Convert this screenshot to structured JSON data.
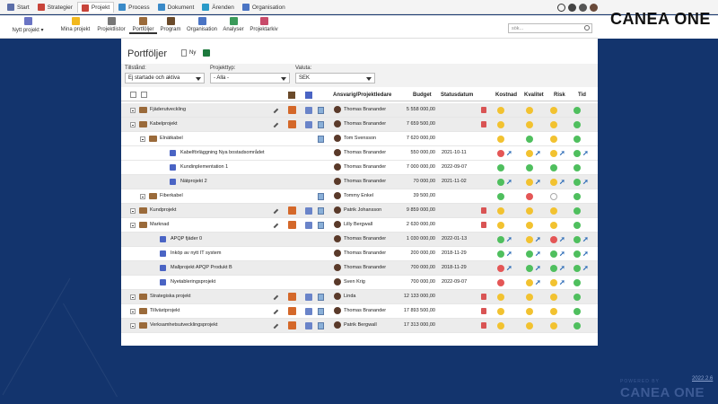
{
  "topnav": {
    "tabs": [
      {
        "label": "Start",
        "color": "#5b6ea8"
      },
      {
        "label": "Strategier",
        "color": "#c8443a"
      },
      {
        "label": "Projekt",
        "color": "#c8443a"
      },
      {
        "label": "Process",
        "color": "#3a8ac8"
      },
      {
        "label": "Dokument",
        "color": "#3a8ac8"
      },
      {
        "label": "Ärenden",
        "color": "#2a9ac8"
      },
      {
        "label": "Organisation",
        "color": "#4a74c4"
      }
    ]
  },
  "brand": {
    "name_part1": "CANEA ",
    "name_part2": "ONE"
  },
  "subnav": {
    "items": [
      "Nytt projekt",
      "Mina projekt",
      "Projektlistor",
      "Portföljer",
      "Program",
      "Organisation",
      "Analyser",
      "Projektarkiv"
    ],
    "search_placeholder": "sök..."
  },
  "page": {
    "title": "Portföljer",
    "new_label": "Ny"
  },
  "filters": {
    "state_label": "Tillstånd:",
    "state_value": "Ej startade och aktiva",
    "type_label": "Projekttyp:",
    "type_value": "- Alla -",
    "currency_label": "Valuta:",
    "currency_value": "SEK"
  },
  "table": {
    "headers": {
      "owner": "Ansvarig/Projektledare",
      "budget": "Budget",
      "status_date": "Statusdatum",
      "cost": "Kostnad",
      "quality": "Kvalitet",
      "risk": "Risk",
      "time": "Tid"
    },
    "rows": [
      {
        "name": "Fjäderutveckling",
        "owner": "Thomas Branander",
        "budget": "5 558 000,00",
        "date": ""
      },
      {
        "name": "Kabelprojekt",
        "owner": "Thomas Branander",
        "budget": "7 659 500,00",
        "date": ""
      },
      {
        "name": "Elnätkabel",
        "owner": "Tom Svensson",
        "budget": "7 620 000,00",
        "date": ""
      },
      {
        "name": "Kabelförläggning Nya bostadsområdet",
        "owner": "Thomas Branander",
        "budget": "550 000,00",
        "date": "2021-10-11"
      },
      {
        "name": "Kundinplementation 1",
        "owner": "Thomas Branander",
        "budget": "7 000 000,00",
        "date": "2022-09-07"
      },
      {
        "name": "Nätprojekt 2",
        "owner": "Thomas Branander",
        "budget": "70 000,00",
        "date": "2021-11-02"
      },
      {
        "name": "Fiberkabel",
        "owner": "Tommy Enkel",
        "budget": "39 500,00",
        "date": ""
      },
      {
        "name": "Kundprojekt",
        "owner": "Patrik Johansson",
        "budget": "9 859 000,00",
        "date": ""
      },
      {
        "name": "Marknad",
        "owner": "Lilly Bergwall",
        "budget": "2 630 000,00",
        "date": ""
      },
      {
        "name": "APQP fjäder 0",
        "owner": "Thomas Branander",
        "budget": "1 030 000,00",
        "date": "2022-01-13"
      },
      {
        "name": "Inköp av nytt IT system",
        "owner": "Thomas Branander",
        "budget": "200 000,00",
        "date": "2018-11-29"
      },
      {
        "name": "Mallprojekt APQP Produkt B",
        "owner": "Thomas Branander",
        "budget": "700 000,00",
        "date": "2018-11-29"
      },
      {
        "name": "Nyetableringsprojekt",
        "owner": "Sven Krig",
        "budget": "700 000,00",
        "date": "2022-09-07"
      },
      {
        "name": "Strategiska projekt",
        "owner": "Linda",
        "budget": "12 133 000,00",
        "date": ""
      },
      {
        "name": "Tillväxtprojekt",
        "owner": "Thomas Branander",
        "budget": "17 893 500,00",
        "date": ""
      },
      {
        "name": "Verksamhetsutvecklingsprojekt",
        "owner": "Patrik Bergwall",
        "budget": "17 313 000,00",
        "date": ""
      }
    ]
  },
  "colors": {
    "green": "#4fbf5e",
    "yellow": "#f2c230",
    "red": "#e45656",
    "white": "#ffffff",
    "arrow": "#2a6ab6"
  },
  "footer": {
    "version": "2022.2.6",
    "powered": "POWERED BY",
    "brand": "CANEA ONE"
  }
}
